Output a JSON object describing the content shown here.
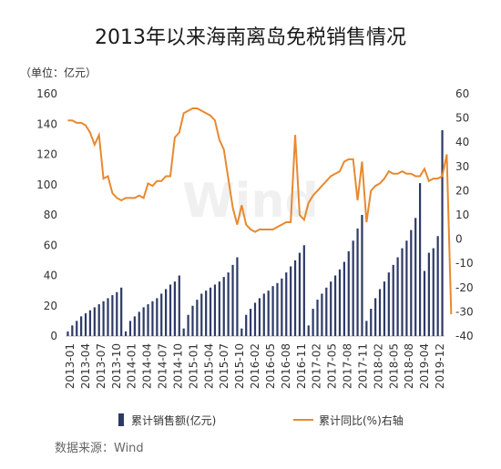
{
  "chart_data": {
    "type": "bar",
    "title": "2013年以来海南离岛免税销售情况",
    "unit_label": "（单位：亿元）",
    "source": "数据来源：Wind",
    "watermark": "Wind",
    "x_tick_labels": [
      "2013-01",
      "2013-04",
      "2013-07",
      "2013-10",
      "2014-01",
      "2014-04",
      "2014-07",
      "2014-10",
      "2015-01",
      "2015-04",
      "2015-07",
      "2015-10",
      "2016-02",
      "2016-05",
      "2016-08",
      "2016-11",
      "2017-02",
      "2017-05",
      "2017-08",
      "2017-11",
      "2018-02",
      "2018-05",
      "2018-08",
      "2019-04",
      "2019-12"
    ],
    "left_axis": {
      "min": 0,
      "max": 160,
      "ticks": [
        0,
        20,
        40,
        60,
        80,
        100,
        120,
        140,
        160
      ]
    },
    "right_axis": {
      "min": -40,
      "max": 60,
      "ticks": [
        -40,
        -30,
        -20,
        -10,
        0,
        10,
        20,
        30,
        40,
        50,
        60
      ]
    },
    "colors": {
      "bar": "#2e3a66",
      "line": "#e8892f"
    },
    "series": [
      {
        "name": "累计销售额(亿元)",
        "type": "bar",
        "axis": "left",
        "values": [
          3,
          7,
          10,
          13,
          15,
          17,
          19,
          21,
          23,
          25,
          27,
          29,
          32,
          3,
          10,
          13,
          16,
          19,
          21,
          23,
          25,
          28,
          31,
          34,
          36,
          40,
          5,
          14,
          20,
          24,
          28,
          30,
          32,
          34,
          36,
          39,
          42,
          47,
          52,
          5,
          14,
          18,
          22,
          25,
          28,
          30,
          33,
          35,
          38,
          42,
          46,
          50,
          55,
          60,
          7,
          18,
          24,
          28,
          32,
          36,
          40,
          44,
          49,
          56,
          63,
          71,
          80,
          10,
          18,
          25,
          31,
          36,
          42,
          47,
          52,
          58,
          63,
          70,
          78,
          101,
          43,
          55,
          58,
          66,
          136
        ]
      },
      {
        "name": "累计同比(%)右轴",
        "type": "line",
        "axis": "right",
        "values": [
          49,
          49,
          48,
          48,
          47,
          44,
          39,
          43,
          25,
          26,
          19,
          17,
          16,
          17,
          17,
          17,
          18,
          17,
          23,
          22,
          24,
          24,
          26,
          26,
          42,
          44,
          52,
          53,
          54,
          54,
          53,
          52,
          51,
          49,
          41,
          37,
          25,
          13,
          6,
          14,
          6,
          4,
          3,
          4,
          4,
          4,
          4,
          5,
          6,
          7,
          7,
          43,
          10,
          8,
          15,
          18,
          20,
          22,
          24,
          26,
          27,
          28,
          32,
          33,
          33,
          16,
          32,
          7,
          20,
          22,
          23,
          25,
          28,
          27,
          27,
          28,
          27,
          27,
          26,
          26,
          29,
          24,
          25,
          25,
          26,
          35,
          -31
        ]
      }
    ]
  }
}
